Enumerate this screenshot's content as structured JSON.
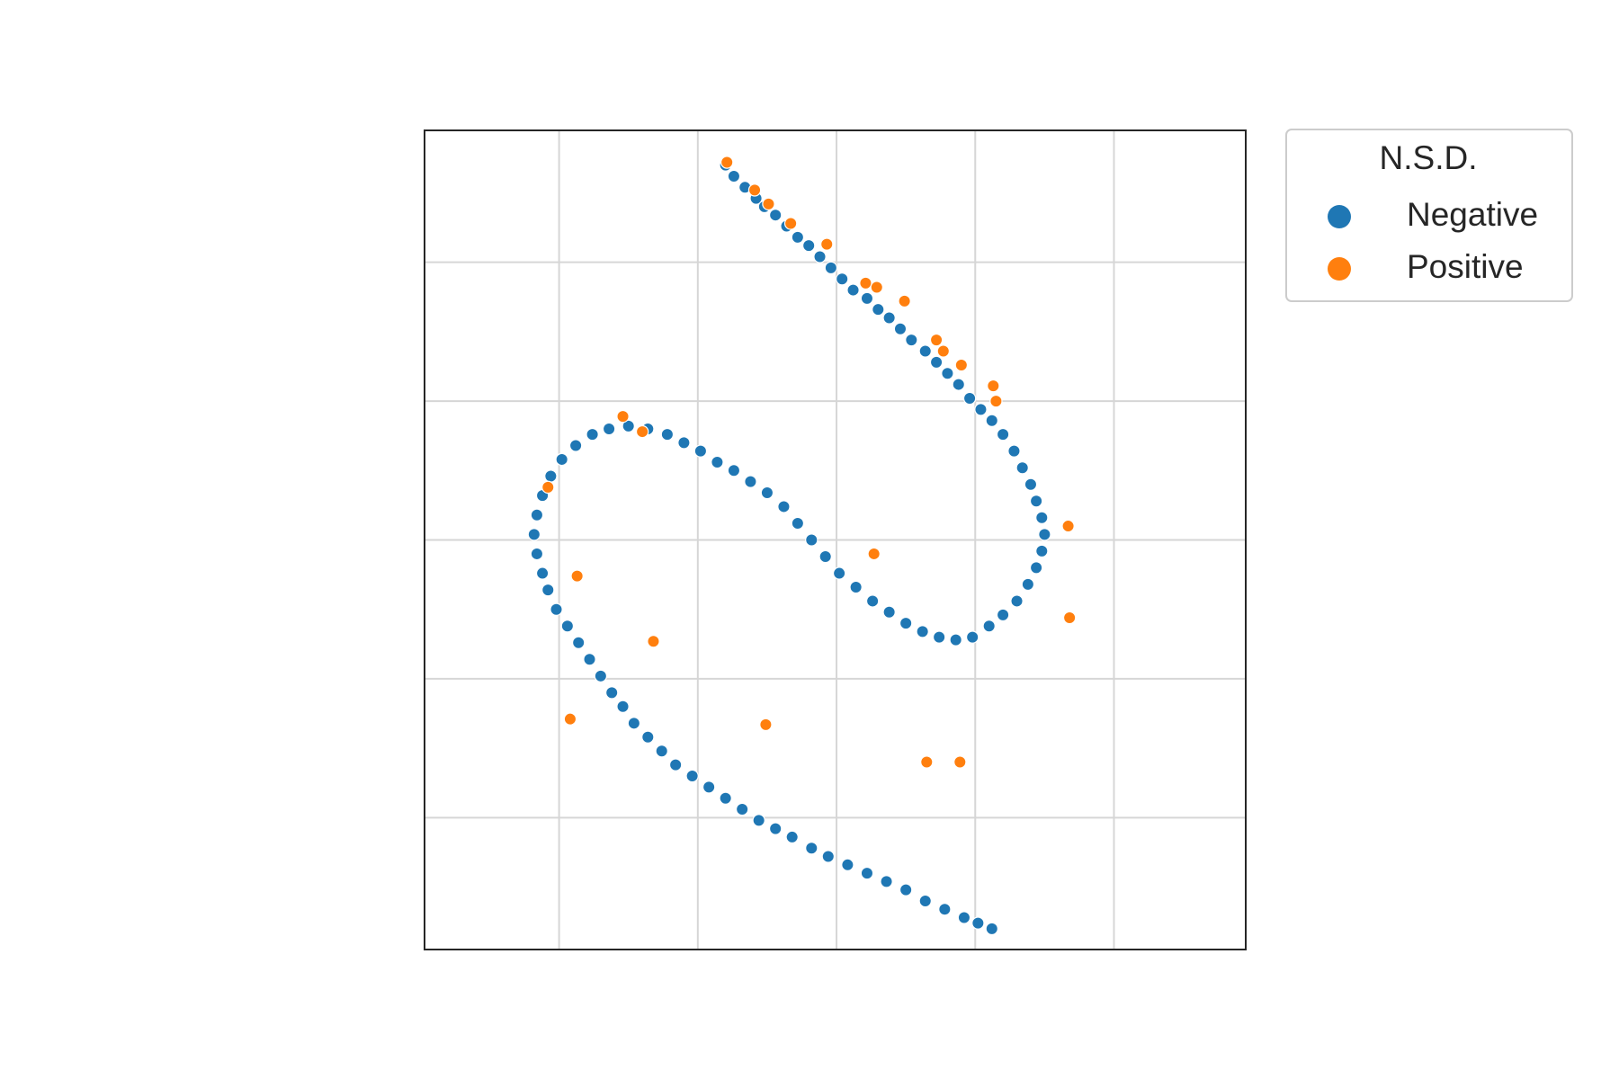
{
  "chart_data": {
    "type": "scatter",
    "title": "",
    "xlabel": "",
    "ylabel": "",
    "xlim": [
      -3.87,
      2.05
    ],
    "ylim": [
      -2.95,
      2.95
    ],
    "grid": true,
    "x_ticks": [
      -2.9,
      -1.9,
      -0.9,
      0.1,
      1.1
    ],
    "y_ticks": [
      -2.0,
      -1.0,
      0.0,
      1.0,
      2.0
    ],
    "show_tick_labels": false,
    "legend": {
      "title": "N.S.D.",
      "placement": "outside-top-right"
    },
    "colors": {
      "Negative": "#1f77b4",
      "Positive": "#ff7f0e"
    },
    "series": [
      {
        "name": "Negative",
        "color": "#1f77b4",
        "points": [
          [
            -1.7,
            2.7
          ],
          [
            -1.64,
            2.62
          ],
          [
            -1.56,
            2.54
          ],
          [
            -1.48,
            2.46
          ],
          [
            -1.42,
            2.4
          ],
          [
            -1.34,
            2.34
          ],
          [
            -1.26,
            2.26
          ],
          [
            -1.18,
            2.18
          ],
          [
            -1.1,
            2.12
          ],
          [
            -1.02,
            2.04
          ],
          [
            -0.94,
            1.96
          ],
          [
            -0.86,
            1.88
          ],
          [
            -0.78,
            1.8
          ],
          [
            -0.68,
            1.74
          ],
          [
            -0.6,
            1.66
          ],
          [
            -0.52,
            1.6
          ],
          [
            -0.44,
            1.52
          ],
          [
            -0.36,
            1.44
          ],
          [
            -0.26,
            1.36
          ],
          [
            -0.18,
            1.28
          ],
          [
            -0.1,
            1.2
          ],
          [
            -0.02,
            1.12
          ],
          [
            0.06,
            1.02
          ],
          [
            0.14,
            0.94
          ],
          [
            0.22,
            0.86
          ],
          [
            0.3,
            0.76
          ],
          [
            0.38,
            0.64
          ],
          [
            0.44,
            0.52
          ],
          [
            0.5,
            0.4
          ],
          [
            0.54,
            0.28
          ],
          [
            0.58,
            0.16
          ],
          [
            0.6,
            0.04
          ],
          [
            0.58,
            -0.08
          ],
          [
            0.54,
            -0.2
          ],
          [
            0.48,
            -0.32
          ],
          [
            0.4,
            -0.44
          ],
          [
            0.3,
            -0.54
          ],
          [
            0.2,
            -0.62
          ],
          [
            0.08,
            -0.7
          ],
          [
            -0.04,
            -0.72
          ],
          [
            -0.16,
            -0.7
          ],
          [
            -0.28,
            -0.66
          ],
          [
            -0.4,
            -0.6
          ],
          [
            -0.52,
            -0.52
          ],
          [
            -0.64,
            -0.44
          ],
          [
            -0.76,
            -0.34
          ],
          [
            -0.88,
            -0.24
          ],
          [
            -0.98,
            -0.12
          ],
          [
            -1.08,
            0.0
          ],
          [
            -1.18,
            0.12
          ],
          [
            -1.28,
            0.24
          ],
          [
            -1.4,
            0.34
          ],
          [
            -1.52,
            0.42
          ],
          [
            -1.64,
            0.5
          ],
          [
            -1.76,
            0.56
          ],
          [
            -1.88,
            0.64
          ],
          [
            -2.0,
            0.7
          ],
          [
            -2.12,
            0.76
          ],
          [
            -2.26,
            0.8
          ],
          [
            -2.4,
            0.82
          ],
          [
            -2.54,
            0.8
          ],
          [
            -2.66,
            0.76
          ],
          [
            -2.78,
            0.68
          ],
          [
            -2.88,
            0.58
          ],
          [
            -2.96,
            0.46
          ],
          [
            -3.02,
            0.32
          ],
          [
            -3.06,
            0.18
          ],
          [
            -3.08,
            0.04
          ],
          [
            -3.06,
            -0.1
          ],
          [
            -3.02,
            -0.24
          ],
          [
            -2.98,
            -0.36
          ],
          [
            -2.92,
            -0.5
          ],
          [
            -2.84,
            -0.62
          ],
          [
            -2.76,
            -0.74
          ],
          [
            -2.68,
            -0.86
          ],
          [
            -2.6,
            -0.98
          ],
          [
            -2.52,
            -1.1
          ],
          [
            -2.44,
            -1.2
          ],
          [
            -2.36,
            -1.32
          ],
          [
            -2.26,
            -1.42
          ],
          [
            -2.16,
            -1.52
          ],
          [
            -2.06,
            -1.62
          ],
          [
            -1.94,
            -1.7
          ],
          [
            -1.82,
            -1.78
          ],
          [
            -1.7,
            -1.86
          ],
          [
            -1.58,
            -1.94
          ],
          [
            -1.46,
            -2.02
          ],
          [
            -1.34,
            -2.08
          ],
          [
            -1.22,
            -2.14
          ],
          [
            -1.08,
            -2.22
          ],
          [
            -0.96,
            -2.28
          ],
          [
            -0.82,
            -2.34
          ],
          [
            -0.68,
            -2.4
          ],
          [
            -0.54,
            -2.46
          ],
          [
            -0.4,
            -2.52
          ],
          [
            -0.26,
            -2.6
          ],
          [
            -0.12,
            -2.66
          ],
          [
            0.02,
            -2.72
          ],
          [
            0.12,
            -2.76
          ],
          [
            0.22,
            -2.8
          ]
        ]
      },
      {
        "name": "Positive",
        "color": "#ff7f0e",
        "points": [
          [
            -1.69,
            2.72
          ],
          [
            -1.49,
            2.52
          ],
          [
            -1.39,
            2.42
          ],
          [
            -1.23,
            2.28
          ],
          [
            -0.97,
            2.13
          ],
          [
            -0.69,
            1.85
          ],
          [
            -0.61,
            1.82
          ],
          [
            -0.41,
            1.72
          ],
          [
            -0.18,
            1.44
          ],
          [
            -0.13,
            1.36
          ],
          [
            -0.0,
            1.26
          ],
          [
            0.23,
            1.11
          ],
          [
            0.25,
            1.0
          ],
          [
            -1.41,
            -1.33
          ],
          [
            -2.44,
            0.89
          ],
          [
            -2.3,
            0.78
          ],
          [
            -2.82,
            -1.29
          ],
          [
            -2.22,
            -0.73
          ],
          [
            -0.63,
            -0.1
          ],
          [
            -0.01,
            -1.6
          ],
          [
            0.77,
            0.1
          ],
          [
            0.78,
            -0.56
          ],
          [
            -0.25,
            -1.6
          ],
          [
            -2.77,
            -0.26
          ],
          [
            -2.98,
            0.38
          ]
        ]
      }
    ]
  }
}
